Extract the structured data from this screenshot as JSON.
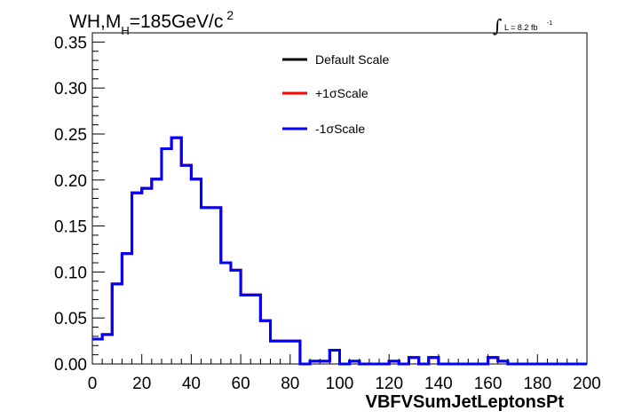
{
  "chart_data": {
    "type": "line",
    "title": {
      "prefix": "WH,M",
      "subscript": "H",
      "value": "=185GeV/c",
      "superscript": "2"
    },
    "luminosity": {
      "integral": "∫",
      "text": "L = 8.2 fb",
      "superscript": "-1"
    },
    "xlabel": "VBFVSumJetLeptonsPt",
    "ylabel": "",
    "xlim": [
      0,
      200
    ],
    "ylim": [
      0,
      0.36
    ],
    "x_ticks": [
      "0",
      "20",
      "40",
      "60",
      "80",
      "100",
      "120",
      "140",
      "160",
      "180",
      "200"
    ],
    "y_ticks": [
      "0.00",
      "0.05",
      "0.10",
      "0.15",
      "0.20",
      "0.25",
      "0.30",
      "0.35"
    ],
    "bin_edges": [
      0,
      4,
      8,
      12,
      16,
      20,
      24,
      28,
      32,
      36,
      40,
      44,
      48,
      52,
      56,
      60,
      64,
      68,
      72,
      76,
      80,
      84,
      88,
      92,
      96,
      100,
      104,
      108,
      112,
      116,
      120,
      124,
      128,
      132,
      136,
      140,
      144,
      148,
      152,
      156,
      160,
      164,
      168,
      172,
      176,
      180,
      184,
      188,
      192,
      196,
      200
    ],
    "series": [
      {
        "name": "Default Scale",
        "color": "#000000",
        "values": [
          0.027,
          0.032,
          0.087,
          0.12,
          0.186,
          0.191,
          0.201,
          0.234,
          0.246,
          0.216,
          0.201,
          0.17,
          0.17,
          0.11,
          0.102,
          0.075,
          0.075,
          0.047,
          0.025,
          0.025,
          0.025,
          0.0,
          0.003,
          0.003,
          0.015,
          0.0,
          0.003,
          0.0,
          0.0,
          0.0,
          0.003,
          0.0,
          0.007,
          0.0,
          0.007,
          0.0,
          0.0,
          0.0,
          0.0,
          0.0,
          0.007,
          0.003,
          0.0,
          0.0,
          0.0,
          0.0,
          0.0,
          0.0,
          0.0,
          0.0
        ]
      },
      {
        "name": "+1σScale",
        "color": "#ff0000",
        "values": [
          0.027,
          0.032,
          0.087,
          0.12,
          0.186,
          0.191,
          0.201,
          0.234,
          0.246,
          0.216,
          0.201,
          0.17,
          0.17,
          0.11,
          0.102,
          0.075,
          0.075,
          0.047,
          0.025,
          0.025,
          0.025,
          0.0,
          0.003,
          0.003,
          0.015,
          0.0,
          0.003,
          0.0,
          0.0,
          0.0,
          0.003,
          0.0,
          0.007,
          0.0,
          0.007,
          0.0,
          0.0,
          0.0,
          0.0,
          0.0,
          0.007,
          0.003,
          0.0,
          0.0,
          0.0,
          0.0,
          0.0,
          0.0,
          0.0,
          0.0
        ]
      },
      {
        "name": "-1σScale",
        "color": "#0000ff",
        "values": [
          0.027,
          0.032,
          0.087,
          0.12,
          0.186,
          0.191,
          0.201,
          0.234,
          0.246,
          0.216,
          0.201,
          0.17,
          0.17,
          0.11,
          0.102,
          0.075,
          0.075,
          0.047,
          0.025,
          0.025,
          0.025,
          0.0,
          0.003,
          0.003,
          0.015,
          0.0,
          0.003,
          0.0,
          0.0,
          0.0,
          0.003,
          0.0,
          0.007,
          0.0,
          0.007,
          0.0,
          0.0,
          0.0,
          0.0,
          0.0,
          0.007,
          0.003,
          0.0,
          0.0,
          0.0,
          0.0,
          0.0,
          0.0,
          0.0,
          0.0
        ]
      }
    ],
    "legend": [
      "Default Scale",
      "+1σScale",
      "-1σScale"
    ],
    "legend_position": "top-right",
    "grid": false
  }
}
